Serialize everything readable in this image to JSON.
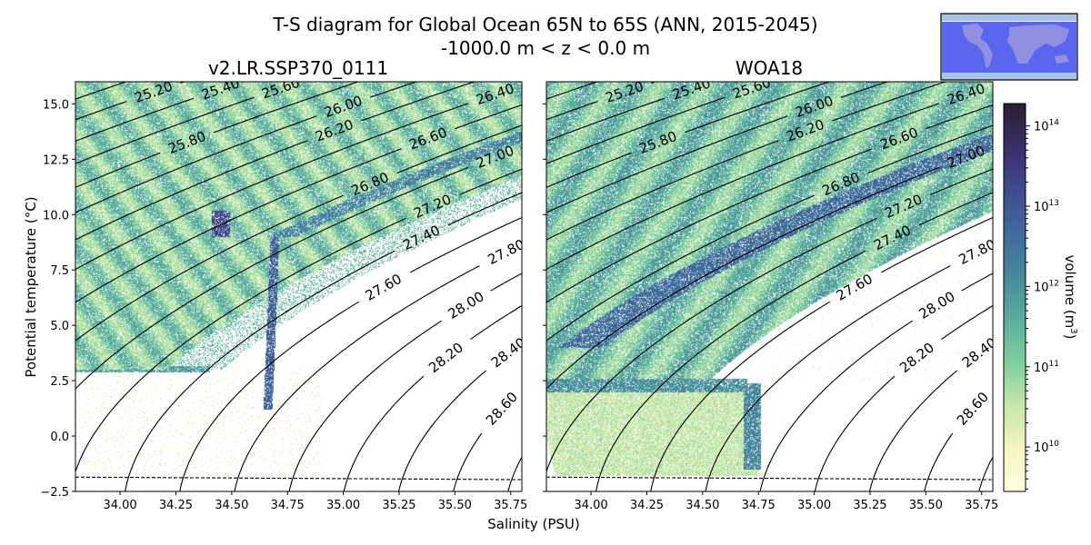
{
  "chart_data": [
    {
      "type": "heatmap",
      "panel_title": "v2.LR.SSP370_0111",
      "xlabel": "Salinity (PSU)",
      "ylabel": "Potential temperature (°C)",
      "xlim": [
        33.8,
        35.8
      ],
      "ylim": [
        -2.5,
        16.0
      ],
      "xticks": [
        "34.00",
        "34.25",
        "34.50",
        "34.75",
        "35.00",
        "35.25",
        "35.50",
        "35.75"
      ],
      "yticks": [
        "−2.5",
        "0.0",
        "2.5",
        "5.0",
        "7.5",
        "10.0",
        "12.5",
        "15.0"
      ],
      "show_yticklabels": true
    },
    {
      "type": "heatmap",
      "panel_title": "WOA18",
      "xlabel": "",
      "xlim": [
        33.8,
        35.8
      ],
      "ylim": [
        -2.5,
        16.0
      ],
      "xticks": [
        "34.00",
        "34.25",
        "34.50",
        "34.75",
        "35.00",
        "35.25",
        "35.50",
        "35.75"
      ],
      "show_yticklabels": false
    }
  ],
  "suptitle_line1": "T-S diagram for Global Ocean 65N to 65S (ANN, 2015-2045)",
  "suptitle_line2": "-1000.0 m < z < 0.0 m",
  "xlabel": "Salinity (PSU)",
  "ylabel": "Potential temperature (°C)",
  "density_contours": {
    "levels_start": 24.0,
    "levels_end": 29.0,
    "levels_step": 0.2,
    "labels": [
      "25.20",
      "25.40",
      "25.60",
      "25.80",
      "26.00",
      "26.20",
      "26.40",
      "26.60",
      "26.80",
      "27.00",
      "27.20",
      "27.40",
      "27.60",
      "27.80",
      "28.00",
      "28.20",
      "28.40",
      "28.60"
    ],
    "freezing_line": "dashed"
  },
  "colorbar": {
    "label": "volume (m³)",
    "label_text": "volume (m",
    "label_sup": "3",
    "label_close": ")",
    "scale": "log",
    "range": [
      2800000000.0,
      190000000000000.0
    ],
    "ticks": [
      {
        "base": "10",
        "exp": "10",
        "value": 10000000000.0
      },
      {
        "base": "10",
        "exp": "11",
        "value": 100000000000.0
      },
      {
        "base": "10",
        "exp": "12",
        "value": 1000000000000.0
      },
      {
        "base": "10",
        "exp": "13",
        "value": 10000000000000.0
      },
      {
        "base": "10",
        "exp": "14",
        "value": 100000000000000.0
      }
    ],
    "colors": [
      "#fefee0",
      "#f6f6c0",
      "#c6e8a8",
      "#80cfa0",
      "#5aae9e",
      "#468a9c",
      "#3f6a9e",
      "#404a8e",
      "#3a2e6a",
      "#2a1e34"
    ]
  }
}
